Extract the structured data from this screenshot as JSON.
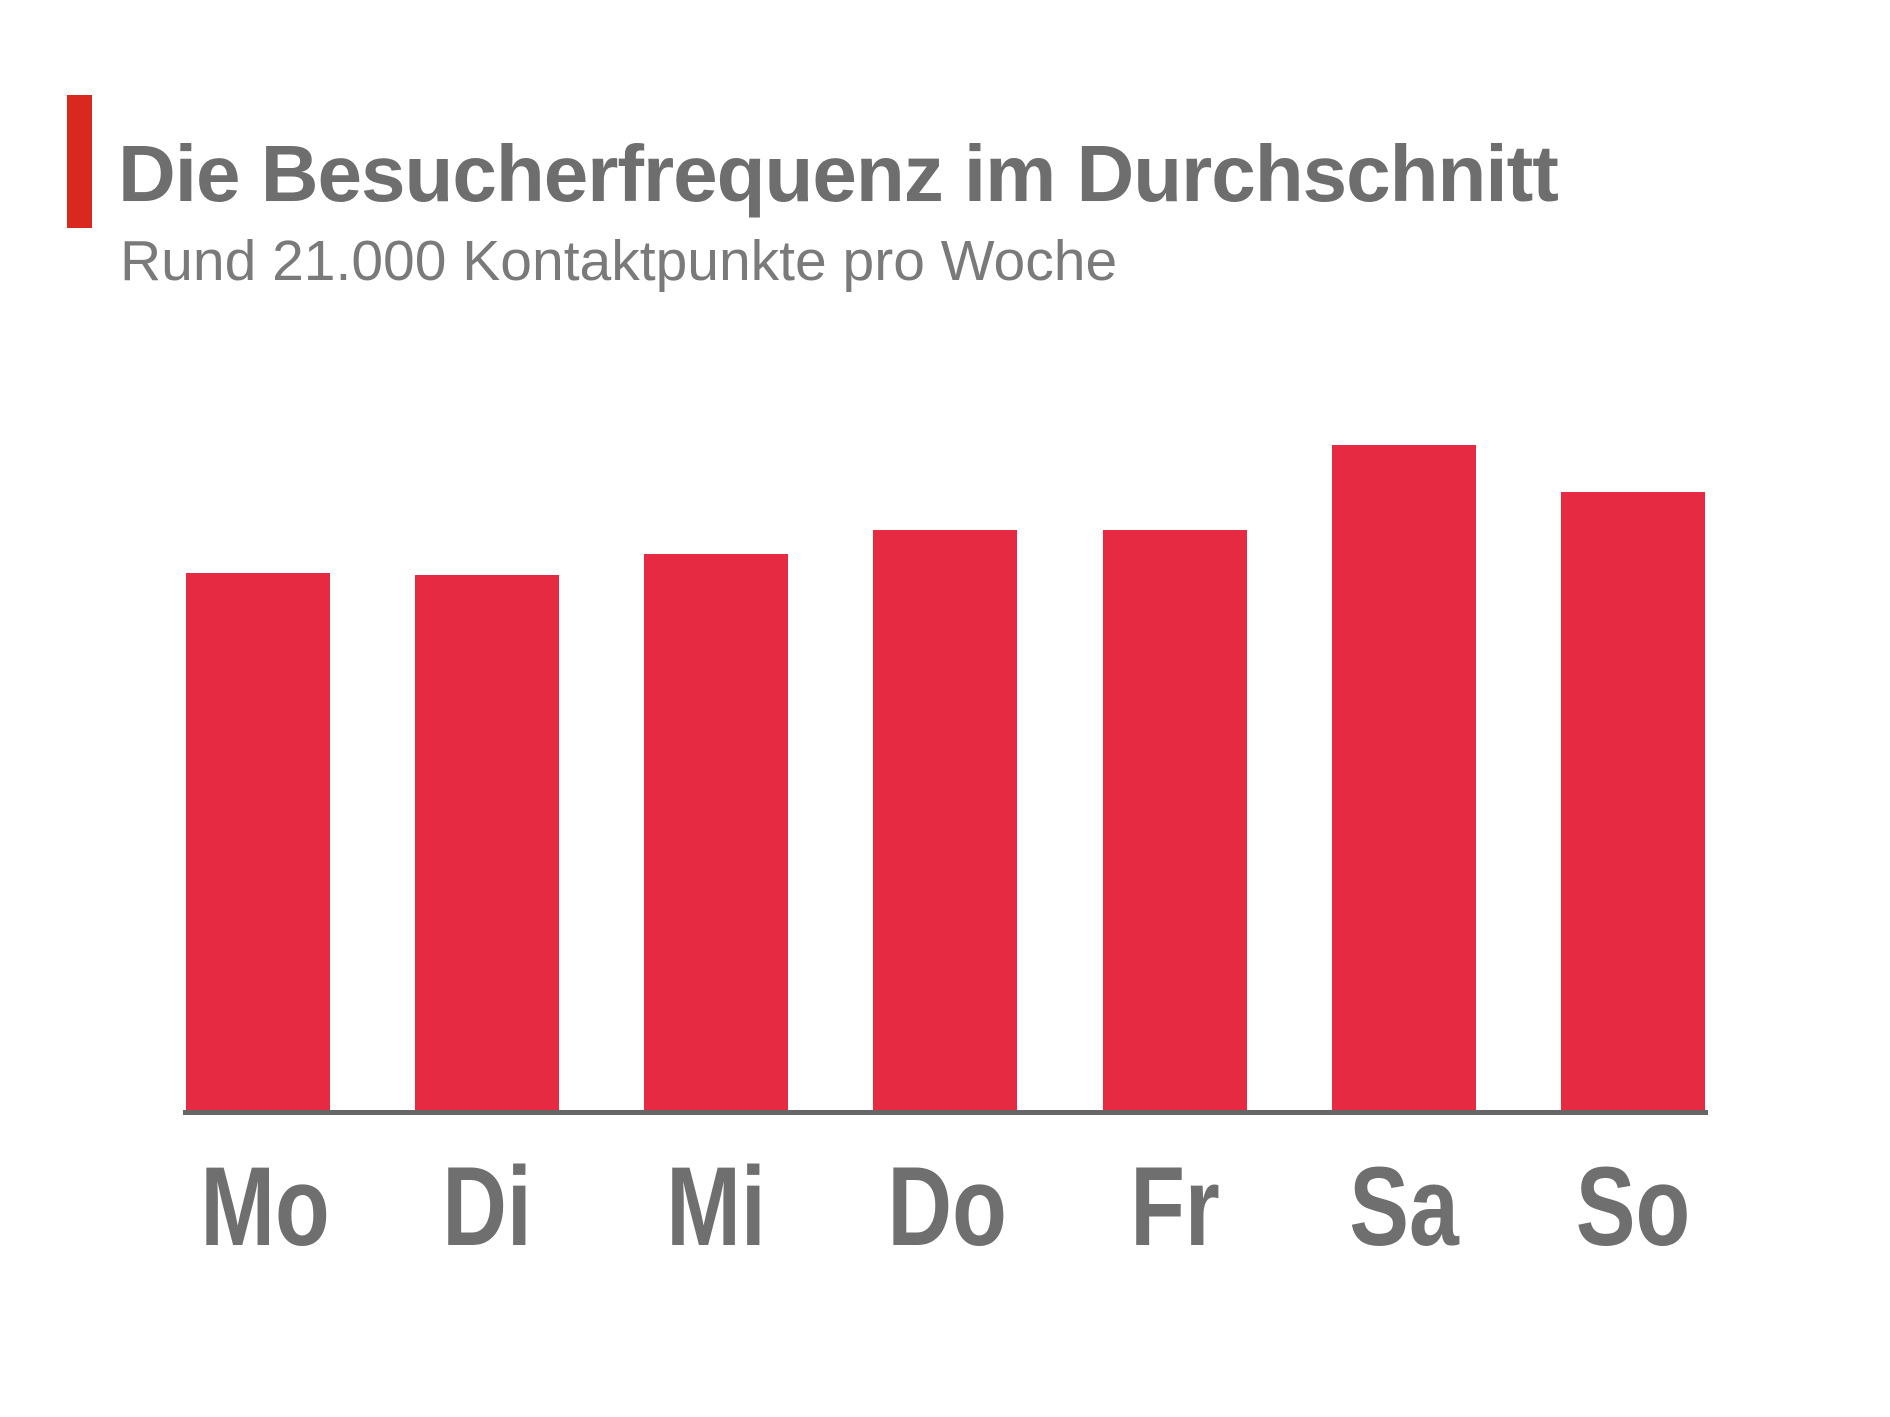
{
  "page": {
    "background": "#FFFFFF"
  },
  "header": {
    "title": "Die Besucherfrequenz im Durchschnitt",
    "subtitle": "Rund 21.000 Kontaktpunkte pro Woche",
    "accent_color": "#D9281E",
    "title_color": "#6E6E6E",
    "subtitle_color": "#7A7A7A"
  },
  "chart_data": {
    "type": "bar",
    "title": "Die Besucherfrequenz im Durchschnitt",
    "subtitle": "Rund 21.000 Kontaktpunkte pro Woche",
    "categories": [
      "Mo",
      "Di",
      "Mi",
      "Do",
      "Fr",
      "Sa",
      "So"
    ],
    "values": [
      2770,
      2760,
      2870,
      2990,
      2990,
      3430,
      3190
    ],
    "value_basis": "estimated from relative bar heights, scaled so the week totals ~21000 contacts; no y-axis shown in original",
    "relative_heights": [
      0.808,
      0.805,
      0.837,
      0.872,
      0.872,
      1.0,
      0.93
    ],
    "xlabel": "",
    "ylabel": "",
    "ylim": [
      0,
      3430
    ],
    "grid": false,
    "legend": false,
    "y_axis_visible": false,
    "bar_color": "#E52A42",
    "axis_line_color": "#666666",
    "tick_label_color": "#6F6F6F"
  }
}
